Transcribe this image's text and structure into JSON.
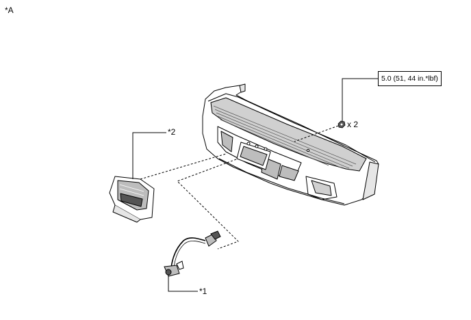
{
  "view_label": "*A",
  "callouts": {
    "part1": "*1",
    "part2": "*2"
  },
  "torque_spec": "5.0 (51, 44 in.*lbf)",
  "nut_quantity": "x 2",
  "colors": {
    "line": "#000000",
    "part_fill": "#ffffff",
    "shade": "#c8c8c8",
    "dark": "#444444"
  }
}
